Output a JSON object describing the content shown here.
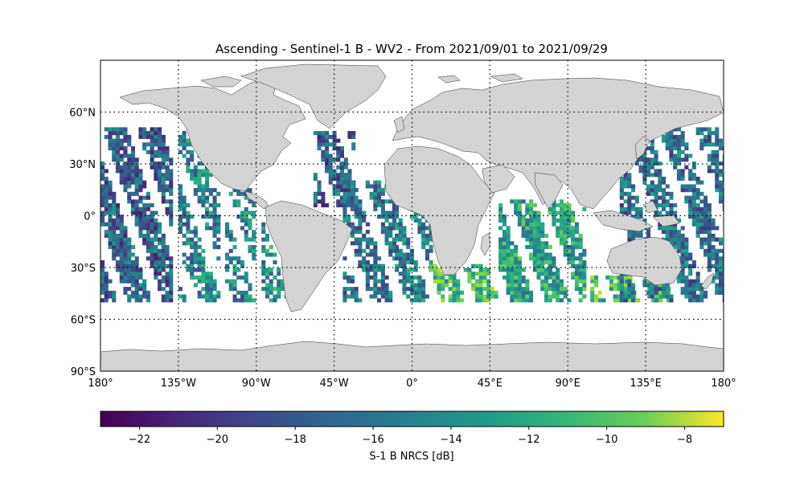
{
  "title": "Ascending - Sentinel-1 B - WV2 - From 2021/09/01 to 2021/09/29",
  "map": {
    "lon_range": [
      -180,
      180
    ],
    "lat_range": [
      -90,
      90
    ],
    "projection": "plate carree",
    "gridlines": "dotted",
    "lon_ticks": [
      {
        "value": -180,
        "label": "180°"
      },
      {
        "value": -135,
        "label": "135°W"
      },
      {
        "value": -90,
        "label": "90°W"
      },
      {
        "value": -45,
        "label": "45°W"
      },
      {
        "value": 0,
        "label": "0°"
      },
      {
        "value": 45,
        "label": "45°E"
      },
      {
        "value": 90,
        "label": "90°E"
      },
      {
        "value": 135,
        "label": "135°E"
      },
      {
        "value": 180,
        "label": "180°"
      }
    ],
    "lat_ticks": [
      {
        "value": 60,
        "label": "60°N"
      },
      {
        "value": 30,
        "label": "30°N"
      },
      {
        "value": 0,
        "label": "0°"
      },
      {
        "value": -30,
        "label": "30°S"
      },
      {
        "value": -60,
        "label": "60°S"
      },
      {
        "value": -90,
        "label": "90°S"
      }
    ],
    "land_color": "#d3d3d3",
    "coast_color": "#333333",
    "data_lat_extent": [
      -50,
      50
    ]
  },
  "colorbar": {
    "label": "S-1 B NRCS [dB]",
    "colormap": "viridis",
    "vmin": -23,
    "vmax": -7,
    "ticks": [
      {
        "value": -22,
        "label": "−22"
      },
      {
        "value": -20,
        "label": "−20"
      },
      {
        "value": -18,
        "label": "−18"
      },
      {
        "value": -16,
        "label": "−16"
      },
      {
        "value": -14,
        "label": "−14"
      },
      {
        "value": -12,
        "label": "−12"
      },
      {
        "value": -10,
        "label": "−10"
      },
      {
        "value": -8,
        "label": "−8"
      }
    ]
  },
  "swath_tracks": [
    {
      "lon_center": -160,
      "lon_halfwidth": 20,
      "lat_min": -50,
      "lat_max": 50,
      "mean_db": -18,
      "density": 0.85
    },
    {
      "lon_center": -123,
      "lon_halfwidth": 12,
      "lat_min": -50,
      "lat_max": 47,
      "mean_db": -16,
      "density": 0.7
    },
    {
      "lon_center": -100,
      "lon_halfwidth": 8,
      "lat_min": -50,
      "lat_max": 15,
      "mean_db": -16,
      "density": 0.6
    },
    {
      "lon_center": -80,
      "lon_halfwidth": 7,
      "lat_min": -50,
      "lat_max": 0,
      "mean_db": -15,
      "density": 0.55
    },
    {
      "lon_center": -45,
      "lon_halfwidth": 12,
      "lat_min": 5,
      "lat_max": 48,
      "mean_db": -18,
      "density": 0.8
    },
    {
      "lon_center": -25,
      "lon_halfwidth": 15,
      "lat_min": -50,
      "lat_max": 20,
      "mean_db": -17,
      "density": 0.7
    },
    {
      "lon_center": 0,
      "lon_halfwidth": 10,
      "lat_min": -50,
      "lat_max": 10,
      "mean_db": -16,
      "density": 0.8
    },
    {
      "lon_center": 30,
      "lon_halfwidth": 20,
      "lat_min": -50,
      "lat_max": -30,
      "mean_db": -12,
      "density": 0.85
    },
    {
      "lon_center": 75,
      "lon_halfwidth": 25,
      "lat_min": -50,
      "lat_max": 8,
      "mean_db": -14,
      "density": 0.85
    },
    {
      "lon_center": 125,
      "lon_halfwidth": 22,
      "lat_min": -50,
      "lat_max": -35,
      "mean_db": -12,
      "density": 0.85
    },
    {
      "lon_center": 150,
      "lon_halfwidth": 30,
      "lat_min": -50,
      "lat_max": 50,
      "mean_db": -17,
      "density": 0.75
    }
  ]
}
